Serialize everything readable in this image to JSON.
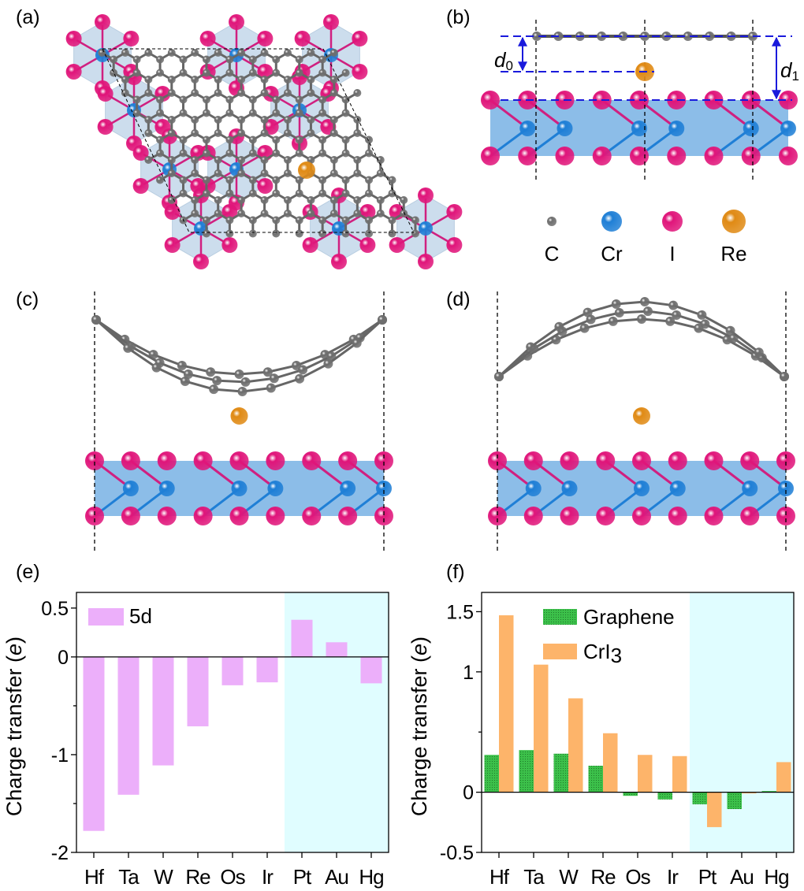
{
  "panels": {
    "a": "(a)",
    "b": "(b)",
    "c": "(c)",
    "d": "(d)",
    "e": "(e)",
    "f": "(f)"
  },
  "structure": {
    "legend": [
      {
        "label": "C",
        "color": "#6e6e6e"
      },
      {
        "label": "Cr",
        "color": "#1f7fd6"
      },
      {
        "label": "I",
        "color": "#e0157a"
      },
      {
        "label": "Re",
        "color": "#e08a14"
      }
    ],
    "d0_label": "d",
    "d0_sub": "0",
    "d1_label": "d",
    "d1_sub": "1"
  },
  "chart_data": [
    {
      "type": "bar",
      "panel": "(e)",
      "categories": [
        "Hf",
        "Ta",
        "W",
        "Re",
        "Os",
        "Ir",
        "Pt",
        "Au",
        "Hg"
      ],
      "series": [
        {
          "name": "5d",
          "values": [
            -1.78,
            -1.41,
            -1.11,
            -0.71,
            -0.29,
            -0.26,
            0.38,
            0.15,
            -0.27
          ],
          "color": "#ecaffa"
        }
      ],
      "ylabel": "Charge transfer (",
      "ylabel_unit": "e",
      "ylabel_close": ")",
      "ylim": [
        -2,
        0.66
      ],
      "yticks": [
        {
          "v": 0.5,
          "label": "0.5"
        },
        {
          "v": 0,
          "label": "0"
        },
        {
          "v": -1,
          "label": "-1"
        },
        {
          "v": -2,
          "label": "-2"
        }
      ],
      "minor_yticks": [
        -0.5,
        -1.5
      ],
      "shaded_from_category": "Pt",
      "shade_color": "#e0fdff",
      "legend_position": "top-left",
      "grid": false
    },
    {
      "type": "bar",
      "panel": "(f)",
      "categories": [
        "Hf",
        "Ta",
        "W",
        "Re",
        "Os",
        "Ir",
        "Pt",
        "Au",
        "Hg"
      ],
      "series": [
        {
          "name": "Graphene",
          "values": [
            0.31,
            0.35,
            0.32,
            0.22,
            -0.03,
            -0.06,
            -0.1,
            -0.14,
            0.01
          ],
          "color": "#3cc04a"
        },
        {
          "name": "CrI",
          "name_sub": "3",
          "values": [
            1.47,
            1.06,
            0.78,
            0.49,
            0.31,
            0.3,
            -0.29,
            -0.01,
            0.25
          ],
          "color": "#fdb46a"
        }
      ],
      "ylabel": "Charge transfer (",
      "ylabel_unit": "e",
      "ylabel_close": ")",
      "ylim": [
        -0.5,
        1.66
      ],
      "yticks": [
        {
          "v": 1.5,
          "label": "1.5"
        },
        {
          "v": 1,
          "label": "1"
        },
        {
          "v": 0,
          "label": "0"
        },
        {
          "v": -0.5,
          "label": "-0.5"
        }
      ],
      "minor_yticks": [
        0.5
      ],
      "shaded_from_category": "Pt",
      "shade_color": "#e0fdff",
      "legend_position": "top-center",
      "grid": false
    }
  ]
}
